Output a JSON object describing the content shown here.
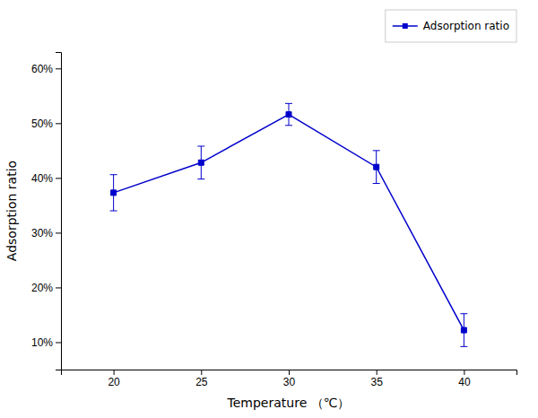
{
  "chart_data": {
    "type": "line",
    "x": [
      20,
      25,
      30,
      35,
      40
    ],
    "series": [
      {
        "name": "Adsorption ratio",
        "color": "#0000CC",
        "marker": "square",
        "line_style": "solid",
        "values": [
          0.373,
          0.428,
          0.516,
          0.42,
          0.122
        ],
        "errors": [
          0.033,
          0.03,
          0.02,
          0.03,
          0.03
        ]
      }
    ],
    "xlabel": "Temperature （℃）",
    "ylabel": "Adsorption ratio",
    "xlim": [
      17,
      43
    ],
    "ylim": [
      0.05,
      0.63
    ],
    "xticks": [
      20,
      25,
      30,
      35,
      40
    ],
    "yticks": [
      {
        "value": 0.1,
        "label": "10%"
      },
      {
        "value": 0.2,
        "label": "20%"
      },
      {
        "value": 0.3,
        "label": "30%"
      },
      {
        "value": 0.4,
        "label": "40%"
      },
      {
        "value": 0.5,
        "label": "50%"
      },
      {
        "value": 0.6,
        "label": "60%"
      }
    ],
    "grid": false,
    "legend": "upper right"
  }
}
